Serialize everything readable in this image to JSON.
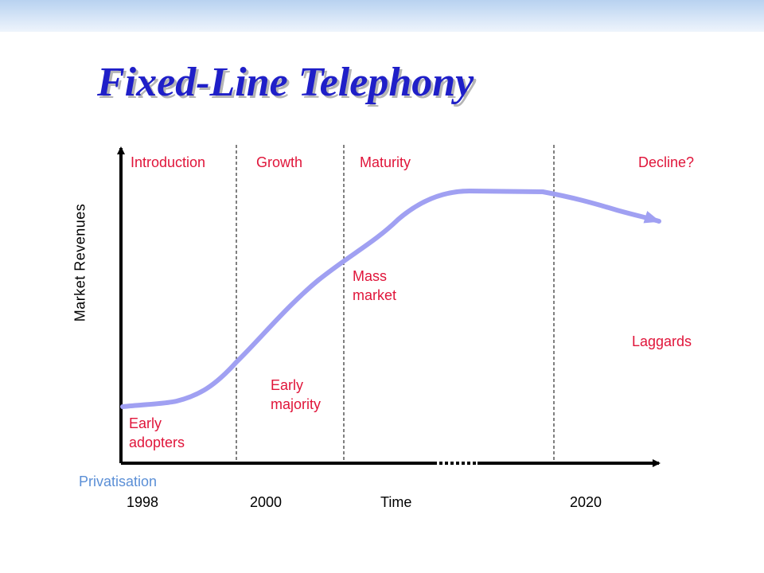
{
  "title": "Fixed-Line Telephony",
  "y_axis_label": "Market Revenues",
  "x_axis_label": "Time",
  "phases": [
    "Introduction",
    "Growth",
    "Maturity",
    "Decline?"
  ],
  "adopter_labels": {
    "early_adopters": [
      "Early",
      "adopters"
    ],
    "early_majority": [
      "Early",
      "majority"
    ],
    "mass_market": [
      "Mass",
      "market"
    ],
    "laggards": "Laggards"
  },
  "event_label": "Privatisation",
  "x_ticks": [
    "1998",
    "2000",
    "2020"
  ],
  "colors": {
    "title": "#1f1fc8",
    "phase_label": "#e0153a",
    "curve": "#a0a0f2",
    "event_label": "#5b8fd6",
    "axis": "#000000"
  },
  "curve_shape": "life-cycle: slow rise, steep S-curve growth, flat plateau at maturity, gradual decline"
}
